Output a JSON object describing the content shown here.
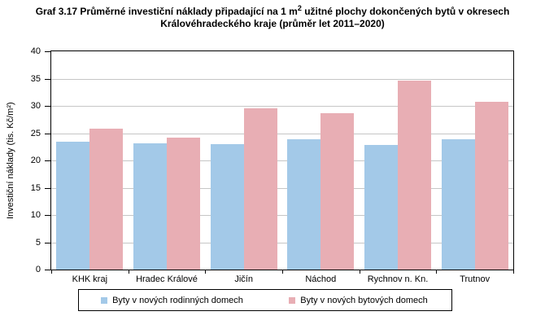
{
  "title": {
    "line1_prefix": "Graf 3.17 Průměrné investiční náklady připadající na 1 m",
    "line1_sup": "2",
    "line1_suffix": " užitné plochy dokončených bytů v okresech",
    "line2": "Královéhradeckého kraje (průměr let 2011–2020)"
  },
  "chart_data": {
    "type": "bar",
    "title": "Graf 3.17 Průměrné investiční náklady připadající na 1 m2 užitné plochy dokončených bytů v okresech Královéhradeckého kraje (průměr let 2011–2020)",
    "categories": [
      "KHK kraj",
      "Hradec Králové",
      "Jičín",
      "Náchod",
      "Rychnov n. Kn.",
      "Trutnov"
    ],
    "series": [
      {
        "key": "rodinne-domy",
        "name": "Byty v nových rodinných domech",
        "color": "#a3c9e8",
        "values": [
          23.4,
          23.2,
          23.0,
          23.9,
          22.8,
          23.9
        ]
      },
      {
        "key": "bytove-domy",
        "name": "Byty v nových bytových domech",
        "color": "#e8aeb4",
        "values": [
          25.8,
          24.2,
          29.5,
          28.7,
          34.6,
          30.8
        ]
      }
    ],
    "xlabel": "",
    "ylabel": "Investiční náklady (tis. Kč/m²)",
    "ylim": [
      0,
      40
    ],
    "ytick_step": 5,
    "yticks": [
      0,
      5,
      10,
      15,
      20,
      25,
      30,
      35,
      40
    ],
    "grid": true,
    "gridline_color": "#c6c6c6",
    "legend_position": "bottom"
  }
}
